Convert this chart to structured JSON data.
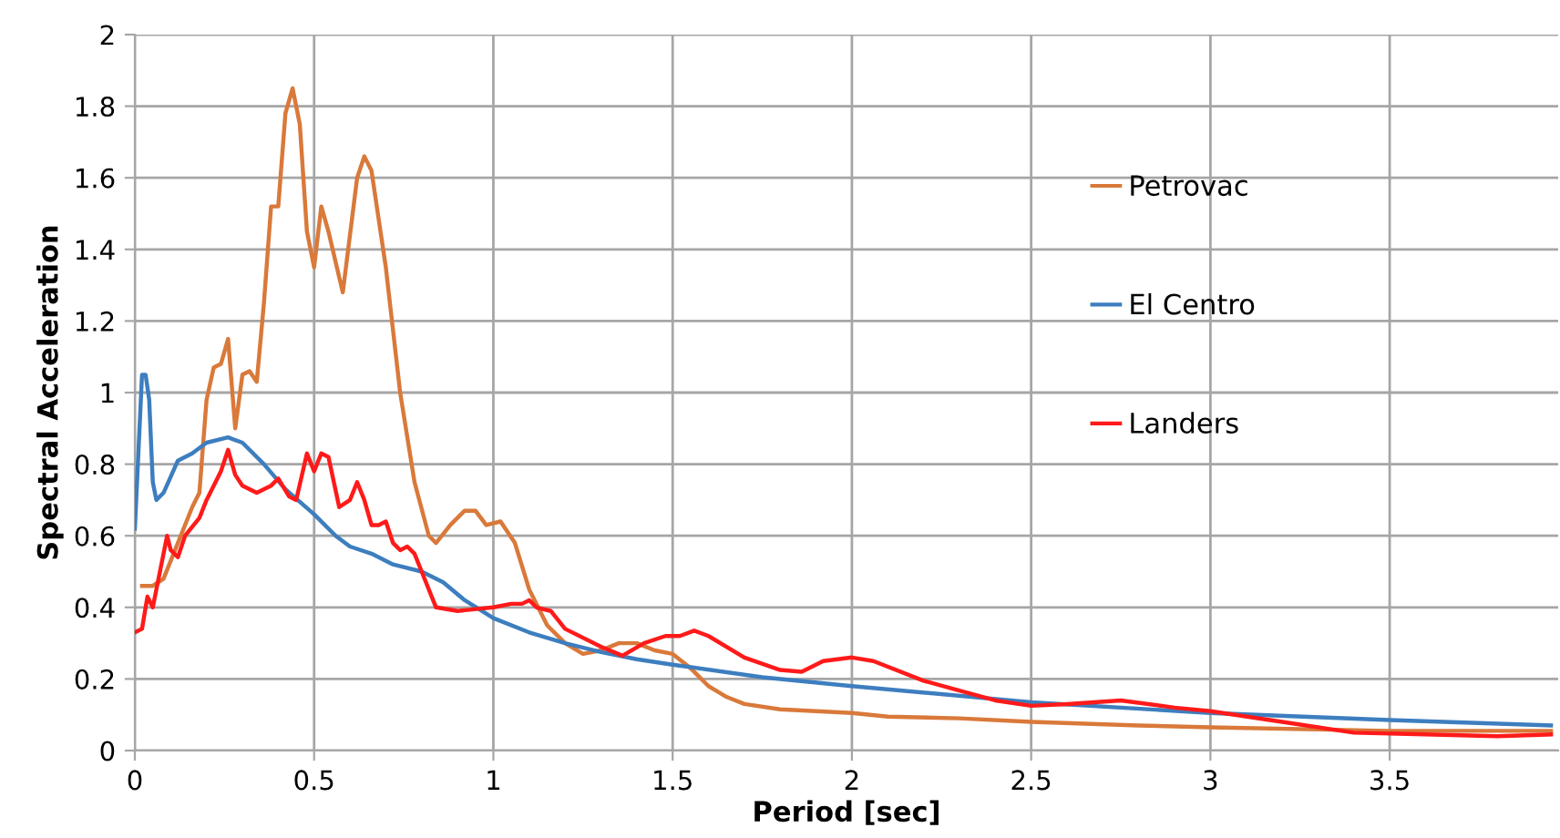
{
  "chart_data": {
    "type": "line",
    "xlabel": "Period [sec]",
    "ylabel": "Spectral Acceleration",
    "xlim": [
      0,
      3.97
    ],
    "ylim": [
      0,
      2
    ],
    "xticks": [
      0,
      0.5,
      1,
      1.5,
      2,
      2.5,
      3,
      3.5
    ],
    "yticks": [
      0,
      0.2,
      0.4,
      0.6,
      0.8,
      1,
      1.2,
      1.4,
      1.6,
      1.8,
      2
    ],
    "grid": true,
    "legend": "right",
    "marker": "none",
    "line_style": "solid",
    "series": [
      {
        "name": "Petrovac",
        "color": "#d9793a",
        "x": [
          0.02,
          0.05,
          0.08,
          0.12,
          0.16,
          0.18,
          0.2,
          0.22,
          0.24,
          0.26,
          0.28,
          0.3,
          0.32,
          0.34,
          0.36,
          0.38,
          0.4,
          0.42,
          0.44,
          0.46,
          0.48,
          0.5,
          0.52,
          0.54,
          0.58,
          0.62,
          0.64,
          0.66,
          0.7,
          0.74,
          0.78,
          0.82,
          0.84,
          0.88,
          0.92,
          0.95,
          0.98,
          1.02,
          1.06,
          1.1,
          1.15,
          1.2,
          1.25,
          1.3,
          1.35,
          1.4,
          1.45,
          1.5,
          1.55,
          1.6,
          1.65,
          1.7,
          1.8,
          1.9,
          2.0,
          2.1,
          2.3,
          2.5,
          2.8,
          3.0,
          3.5,
          3.95
        ],
        "values": [
          0.46,
          0.46,
          0.48,
          0.58,
          0.68,
          0.72,
          0.98,
          1.07,
          1.08,
          1.15,
          0.9,
          1.05,
          1.06,
          1.03,
          1.25,
          1.52,
          1.52,
          1.78,
          1.85,
          1.75,
          1.45,
          1.35,
          1.52,
          1.45,
          1.28,
          1.6,
          1.66,
          1.62,
          1.35,
          1.0,
          0.75,
          0.6,
          0.58,
          0.63,
          0.67,
          0.67,
          0.63,
          0.64,
          0.58,
          0.45,
          0.35,
          0.3,
          0.27,
          0.28,
          0.3,
          0.3,
          0.28,
          0.27,
          0.23,
          0.18,
          0.15,
          0.13,
          0.115,
          0.11,
          0.105,
          0.095,
          0.09,
          0.08,
          0.07,
          0.065,
          0.055,
          0.055
        ]
      },
      {
        "name": "El Centro",
        "color": "#3d7ebf",
        "x": [
          0,
          0.02,
          0.03,
          0.04,
          0.05,
          0.06,
          0.08,
          0.12,
          0.16,
          0.2,
          0.26,
          0.3,
          0.36,
          0.42,
          0.5,
          0.56,
          0.6,
          0.66,
          0.72,
          0.8,
          0.86,
          0.92,
          1.0,
          1.1,
          1.2,
          1.3,
          1.4,
          1.5,
          1.75,
          2,
          2.5,
          3,
          3.5,
          3.95
        ],
        "values": [
          0.62,
          1.05,
          1.05,
          0.98,
          0.75,
          0.7,
          0.72,
          0.81,
          0.83,
          0.86,
          0.875,
          0.86,
          0.8,
          0.73,
          0.66,
          0.6,
          0.57,
          0.55,
          0.52,
          0.5,
          0.47,
          0.42,
          0.37,
          0.33,
          0.3,
          0.275,
          0.255,
          0.24,
          0.205,
          0.18,
          0.135,
          0.105,
          0.085,
          0.07
        ]
      },
      {
        "name": "Landers",
        "color": "#ff1a1a",
        "x": [
          0,
          0.02,
          0.035,
          0.05,
          0.06,
          0.09,
          0.1,
          0.12,
          0.14,
          0.18,
          0.2,
          0.24,
          0.26,
          0.28,
          0.3,
          0.34,
          0.38,
          0.4,
          0.43,
          0.45,
          0.48,
          0.5,
          0.52,
          0.54,
          0.57,
          0.6,
          0.62,
          0.64,
          0.66,
          0.68,
          0.7,
          0.72,
          0.74,
          0.76,
          0.78,
          0.8,
          0.84,
          0.9,
          1,
          1.05,
          1.08,
          1.1,
          1.12,
          1.16,
          1.2,
          1.3,
          1.36,
          1.42,
          1.48,
          1.52,
          1.56,
          1.6,
          1.7,
          1.8,
          1.86,
          1.92,
          2,
          2.06,
          2.2,
          2.4,
          2.5,
          2.6,
          2.75,
          2.9,
          3.0,
          3.2,
          3.4,
          3.6,
          3.8,
          3.95
        ],
        "values": [
          0.33,
          0.34,
          0.43,
          0.4,
          0.45,
          0.6,
          0.56,
          0.54,
          0.6,
          0.65,
          0.7,
          0.78,
          0.84,
          0.77,
          0.74,
          0.72,
          0.74,
          0.76,
          0.71,
          0.7,
          0.83,
          0.78,
          0.83,
          0.82,
          0.68,
          0.7,
          0.75,
          0.7,
          0.63,
          0.63,
          0.64,
          0.58,
          0.56,
          0.57,
          0.55,
          0.5,
          0.4,
          0.39,
          0.4,
          0.41,
          0.41,
          0.42,
          0.4,
          0.39,
          0.34,
          0.29,
          0.265,
          0.3,
          0.32,
          0.32,
          0.335,
          0.32,
          0.26,
          0.225,
          0.22,
          0.25,
          0.26,
          0.25,
          0.195,
          0.14,
          0.125,
          0.13,
          0.14,
          0.12,
          0.11,
          0.08,
          0.05,
          0.045,
          0.04,
          0.045
        ]
      }
    ]
  }
}
